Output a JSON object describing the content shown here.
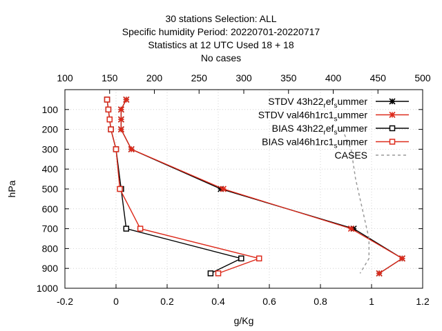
{
  "chart_data": {
    "type": "line",
    "title_lines": [
      "30 stations Selection: ALL",
      "Specific humidity  Period: 20220701-20220717",
      "Statistics at 12 UTC  Used  18  + 18",
      "No cases"
    ],
    "xlabel": "g/Kg",
    "ylabel": "hPa",
    "xlim": [
      -0.2,
      1.2
    ],
    "x_ticks": [
      "-0.2",
      "0",
      "0.2",
      "0.4",
      "0.6",
      "0.8",
      "1",
      "1.2"
    ],
    "x2lim": [
      100,
      500
    ],
    "x2_ticks": [
      "100",
      "150",
      "200",
      "250",
      "300",
      "350",
      "400",
      "450",
      "500"
    ],
    "ylim": [
      1000,
      0
    ],
    "y_ticks": [
      "100",
      "200",
      "300",
      "400",
      "500",
      "600",
      "700",
      "800",
      "900",
      "1000"
    ],
    "legend_position": "top-right",
    "series": [
      {
        "name": "STDV 43h22",
        "legend_label": {
          "main": "STDV 43h22",
          "sub1": "r",
          "mid": "ef",
          "sub2": "s",
          "tail": "ummer"
        },
        "color": "#000000",
        "marker": "x",
        "axis": "x1",
        "points": [
          [
            0.04,
            50
          ],
          [
            0.02,
            100
          ],
          [
            0.02,
            150
          ],
          [
            0.02,
            200
          ],
          [
            0.06,
            300
          ],
          [
            0.41,
            500
          ],
          [
            0.93,
            700
          ],
          [
            1.12,
            850
          ],
          [
            1.03,
            925
          ]
        ]
      },
      {
        "name": "STDV val46h1rc1",
        "legend_label": {
          "main": "STDV val46h1rc1",
          "sub1": "s",
          "mid": "",
          "sub2": "",
          "tail": "ummer"
        },
        "color": "#dd2a1b",
        "marker": "x",
        "axis": "x1",
        "points": [
          [
            0.04,
            50
          ],
          [
            0.02,
            100
          ],
          [
            0.02,
            150
          ],
          [
            0.02,
            200
          ],
          [
            0.06,
            300
          ],
          [
            0.42,
            500
          ],
          [
            0.92,
            700
          ],
          [
            1.12,
            850
          ],
          [
            1.03,
            925
          ]
        ]
      },
      {
        "name": "BIAS 43h22",
        "legend_label": {
          "main": "BIAS 43h22",
          "sub1": "r",
          "mid": "ef",
          "sub2": "s",
          "tail": "ummer"
        },
        "color": "#000000",
        "marker": "square",
        "axis": "x1",
        "points": [
          [
            -0.035,
            50
          ],
          [
            -0.03,
            100
          ],
          [
            -0.025,
            150
          ],
          [
            -0.02,
            200
          ],
          [
            0,
            300
          ],
          [
            0.02,
            500
          ],
          [
            0.04,
            700
          ],
          [
            0.49,
            850
          ],
          [
            0.37,
            925
          ]
        ]
      },
      {
        "name": "BIAS val46h1rc1",
        "legend_label": {
          "main": "BIAS val46h1rc1",
          "sub1": "s",
          "mid": "",
          "sub2": "",
          "tail": "ummer"
        },
        "color": "#dd2a1b",
        "marker": "square",
        "axis": "x1",
        "points": [
          [
            -0.035,
            50
          ],
          [
            -0.03,
            100
          ],
          [
            -0.025,
            150
          ],
          [
            -0.02,
            200
          ],
          [
            0,
            300
          ],
          [
            0.015,
            500
          ],
          [
            0.095,
            700
          ],
          [
            0.56,
            850
          ],
          [
            0.4,
            925
          ]
        ]
      },
      {
        "name": "CASES",
        "legend_label": {
          "main": "CASES",
          "sub1": "",
          "mid": "",
          "sub2": "",
          "tail": ""
        },
        "color": "#999999",
        "marker": "none",
        "dash": true,
        "axis": "x2",
        "points": [
          [
            410,
            200
          ],
          [
            420,
            300
          ],
          [
            425,
            450
          ],
          [
            430,
            550
          ],
          [
            435,
            650
          ],
          [
            440,
            750
          ],
          [
            440,
            850
          ],
          [
            430,
            925
          ]
        ]
      }
    ]
  }
}
